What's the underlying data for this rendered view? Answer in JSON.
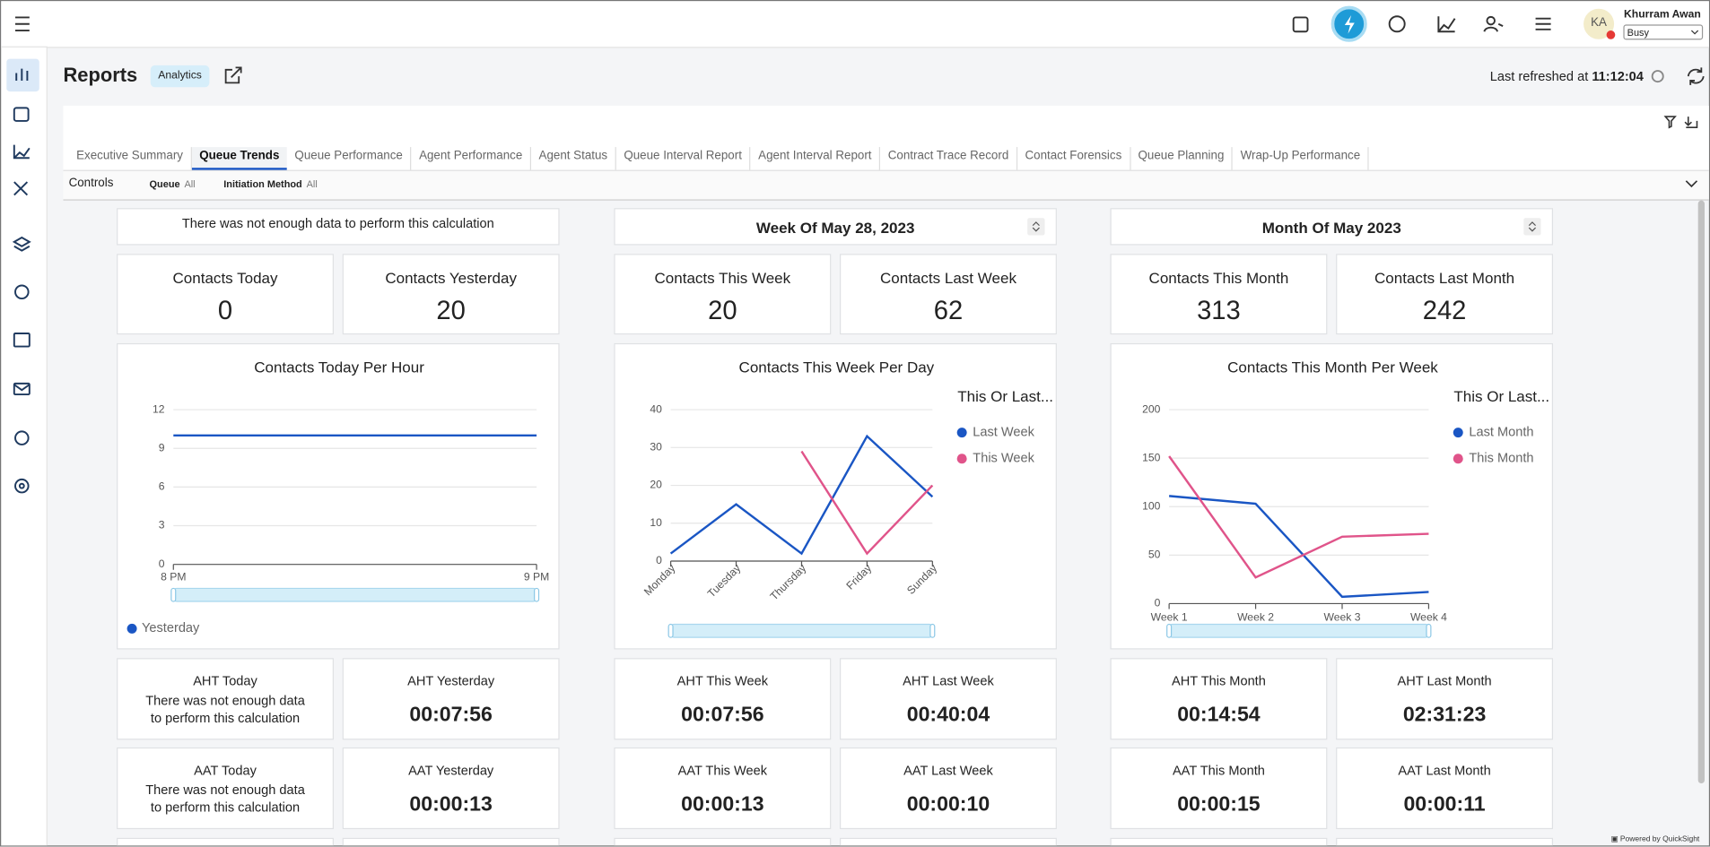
{
  "topbar": {
    "initials": "KA",
    "user_name": "Khurram Awan",
    "status": "Busy"
  },
  "header": {
    "title": "Reports",
    "badge": "Analytics",
    "refresh_label": "Last refreshed at",
    "refresh_time": "11:12:04"
  },
  "tabs": [
    "Executive Summary",
    "Queue Trends",
    "Queue Performance",
    "Agent Performance",
    "Agent Status",
    "Queue Interval Report",
    "Agent Interval Report",
    "Contract Trace Record",
    "Contact Forensics",
    "Queue Planning",
    "Wrap-Up Performance"
  ],
  "controls": {
    "label": "Controls",
    "filters": [
      {
        "name": "Queue",
        "value": "All"
      },
      {
        "name": "Initiation Method",
        "value": "All"
      }
    ]
  },
  "columns": [
    {
      "heading": "There was not enough data to perform this calculation",
      "kpis": [
        {
          "label": "Contacts Today",
          "value": 0
        },
        {
          "label": "Contacts Yesterday",
          "value": 20
        }
      ],
      "aht": [
        {
          "label": "AHT Today",
          "note": "There was not enough data to perform this calculation"
        },
        {
          "label": "AHT Yesterday",
          "value": "00:07:56"
        }
      ],
      "aat": [
        {
          "label": "AAT Today",
          "note": "There was not enough data to perform this calculation"
        },
        {
          "label": "AAT Yesterday",
          "value": "00:00:13"
        }
      ]
    },
    {
      "heading": "Week Of May 28, 2023",
      "kpis": [
        {
          "label": "Contacts This Week",
          "value": 20
        },
        {
          "label": "Contacts Last Week",
          "value": 62
        }
      ],
      "aht": [
        {
          "label": "AHT This Week",
          "value": "00:07:56"
        },
        {
          "label": "AHT Last Week",
          "value": "00:40:04"
        }
      ],
      "aat": [
        {
          "label": "AAT This Week",
          "value": "00:00:13"
        },
        {
          "label": "AAT Last Week",
          "value": "00:00:10"
        }
      ]
    },
    {
      "heading": "Month Of May 2023",
      "kpis": [
        {
          "label": "Contacts This Month",
          "value": 313
        },
        {
          "label": "Contacts Last Month",
          "value": 242
        }
      ],
      "aht": [
        {
          "label": "AHT This Month",
          "value": "00:14:54"
        },
        {
          "label": "AHT Last Month",
          "value": "02:31:23"
        }
      ],
      "aat": [
        {
          "label": "AAT This Month",
          "value": "00:00:15"
        },
        {
          "label": "AAT Last Month",
          "value": "00:00:11"
        }
      ]
    }
  ],
  "chart_data": [
    {
      "type": "line",
      "title": "Contacts Today Per Hour",
      "categories": [
        "8 PM",
        "9 PM"
      ],
      "series": [
        {
          "name": "Yesterday",
          "color": "#1a56c4",
          "values": [
            10,
            10
          ]
        }
      ],
      "ylim": [
        0,
        12
      ],
      "yticks": [
        0,
        3,
        6,
        9,
        12
      ],
      "grid": true,
      "legend": "bottom"
    },
    {
      "type": "line",
      "title": "Contacts This Week Per Day",
      "categories": [
        "Monday",
        "Tuesday",
        "Thursday",
        "Friday",
        "Sunday"
      ],
      "series": [
        {
          "name": "Last Week",
          "color": "#1a56c4",
          "values": [
            2,
            15,
            2,
            33,
            17
          ]
        },
        {
          "name": "This Week",
          "color": "#e0548a",
          "values": [
            null,
            null,
            29,
            2,
            20
          ]
        }
      ],
      "ylim": [
        0,
        40
      ],
      "yticks": [
        0,
        10,
        20,
        30,
        40
      ],
      "grid": true,
      "legend": "right",
      "legend_title": "This Or Last..."
    },
    {
      "type": "line",
      "title": "Contacts This Month Per Week",
      "categories": [
        "Week 1",
        "Week 2",
        "Week 3",
        "Week 4"
      ],
      "series": [
        {
          "name": "Last Month",
          "color": "#1a56c4",
          "values": [
            111,
            103,
            7,
            12
          ]
        },
        {
          "name": "This Month",
          "color": "#e0548a",
          "values": [
            152,
            27,
            69,
            72
          ]
        }
      ],
      "ylim": [
        0,
        200
      ],
      "yticks": [
        0,
        50,
        100,
        150,
        200
      ],
      "grid": true,
      "legend": "right",
      "legend_title": "This Or Last..."
    }
  ],
  "footer": "Powered by QuickSight"
}
